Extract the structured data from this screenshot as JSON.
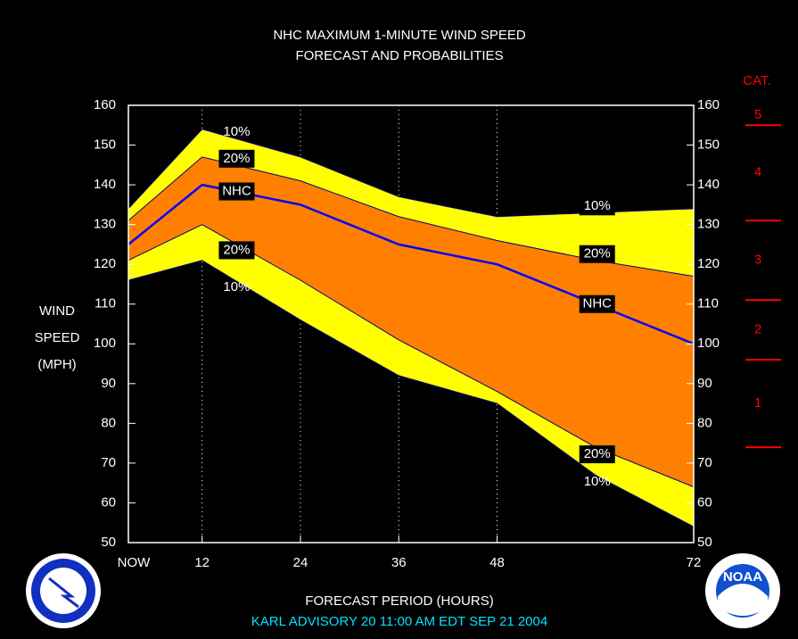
{
  "chart_data": {
    "type": "band",
    "title": "NHC MAXIMUM 1-MINUTE WIND SPEED",
    "subtitle": "FORECAST AND PROBABILITIES",
    "x_label": "FORECAST PERIOD (HOURS)",
    "y_label": [
      "WIND",
      "SPEED",
      "(MPH)"
    ],
    "footer": "KARL   ADVISORY  20 11:00 AM EDT SEP 21 2004",
    "x": [
      3,
      12,
      24,
      36,
      48,
      60,
      72
    ],
    "xlim": [
      3,
      72
    ],
    "xticks": [
      {
        "value": 3,
        "label": "NOW"
      },
      12,
      24,
      36,
      48,
      72
    ],
    "ylim": [
      50,
      160
    ],
    "yticks": [
      50,
      60,
      70,
      80,
      90,
      100,
      110,
      120,
      130,
      140,
      150,
      160
    ],
    "grid": true,
    "series": [
      {
        "name": "10%",
        "color": "#ffff00",
        "values": [
          134,
          154,
          147,
          137,
          132,
          133,
          134
        ]
      },
      {
        "name": "20%",
        "color": "#ff8000",
        "values": [
          131,
          147,
          141,
          132,
          126,
          121,
          117
        ]
      },
      {
        "name": "NHC",
        "color": "#0000ff",
        "values": [
          125,
          140,
          135,
          125,
          120,
          110,
          100
        ]
      },
      {
        "name": "20%",
        "color": "#ff8000",
        "values": [
          121,
          130,
          116,
          101,
          88,
          74,
          64
        ]
      },
      {
        "name": "10%",
        "color": "#ffff00",
        "values": [
          116,
          121,
          106,
          92,
          85,
          67,
          54
        ]
      }
    ],
    "category_title": "CAT.",
    "category_color": "#ff0000",
    "category_thresholds": [
      74,
      96,
      111,
      131,
      155
    ],
    "category_labels": [
      "1",
      "2",
      "3",
      "4",
      "5"
    ],
    "noaa_logo_text": "NOAA"
  }
}
